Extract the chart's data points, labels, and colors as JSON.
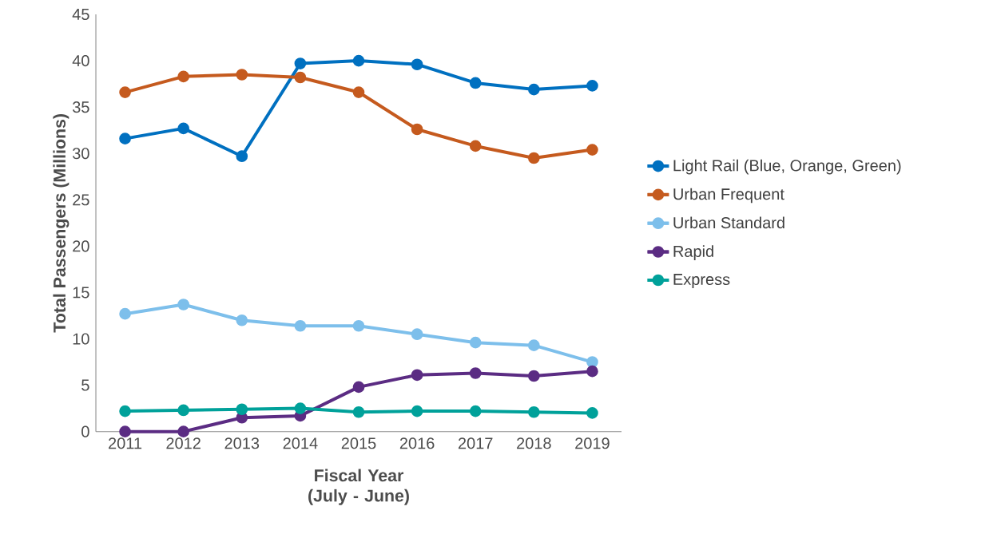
{
  "chart_data": {
    "type": "line",
    "xlabel": "Fiscal Year (July - June)",
    "ylabel": "Total Passengers (Millions)",
    "categories": [
      "2011",
      "2012",
      "2013",
      "2014",
      "2015",
      "2016",
      "2017",
      "2018",
      "2019"
    ],
    "ylim": [
      0,
      45
    ],
    "yticks": [
      0,
      5,
      10,
      15,
      20,
      25,
      30,
      35,
      40,
      45
    ],
    "grid": false,
    "legend": "right",
    "marker": "circle",
    "line_style": "solid",
    "series": [
      {
        "name": "Light Rail (Blue, Orange, Green)",
        "color": "#0070c0",
        "values": [
          31.6,
          32.7,
          29.7,
          39.7,
          40.0,
          39.6,
          37.6,
          36.9,
          37.3
        ]
      },
      {
        "name": "Urban Frequent",
        "color": "#c55a1e",
        "values": [
          36.6,
          38.3,
          38.5,
          38.2,
          36.6,
          32.6,
          30.8,
          29.5,
          30.4
        ]
      },
      {
        "name": "Urban Standard",
        "color": "#7dbfeb",
        "values": [
          12.7,
          13.7,
          12.0,
          11.4,
          11.4,
          10.5,
          9.6,
          9.3,
          7.5
        ]
      },
      {
        "name": "Rapid",
        "color": "#5b2c83",
        "values": [
          0,
          0,
          1.5,
          1.7,
          4.8,
          6.1,
          6.3,
          6.0,
          6.5
        ]
      },
      {
        "name": "Express",
        "color": "#00a19a",
        "values": [
          2.2,
          2.3,
          2.4,
          2.5,
          2.1,
          2.2,
          2.2,
          2.1,
          2.0
        ]
      }
    ]
  }
}
